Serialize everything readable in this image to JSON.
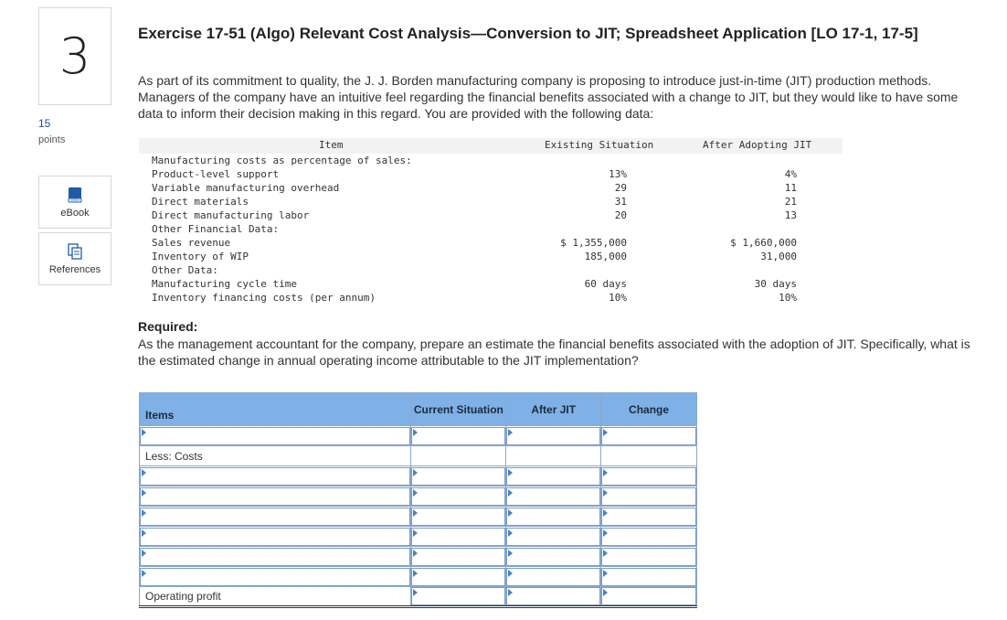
{
  "question": {
    "number": "3",
    "points_value": "15",
    "points_label": "points"
  },
  "sidebar": {
    "ebook_label": "eBook",
    "references_label": "References"
  },
  "title": "Exercise 17-51 (Algo) Relevant Cost Analysis—Conversion to JIT; Spreadsheet Application [LO 17-1, 17-5]",
  "intro": "As part of its commitment to quality, the J. J. Borden manufacturing company is proposing to introduce just-in-time (JIT) production methods. Managers of the company have an intuitive feel regarding the financial benefits associated with a change to JIT, but they would like to have some data to inform their decision making in this regard. You are provided with the following data:",
  "data_table": {
    "headers": {
      "item": "Item",
      "existing": "Existing Situation",
      "after": "After Adopting JIT"
    },
    "rows": [
      {
        "item": "Manufacturing costs as percentage of sales:",
        "existing": "",
        "after": ""
      },
      {
        "item": "Product-level support",
        "existing": "13%",
        "after": "4%"
      },
      {
        "item": "Variable manufacturing overhead",
        "existing": "29",
        "after": "11"
      },
      {
        "item": "Direct materials",
        "existing": "31",
        "after": "21"
      },
      {
        "item": "Direct manufacturing labor",
        "existing": "20",
        "after": "13"
      },
      {
        "item": "Other Financial Data:",
        "existing": "",
        "after": ""
      },
      {
        "item": "Sales revenue",
        "existing": "$ 1,355,000",
        "after": "$ 1,660,000"
      },
      {
        "item": "Inventory of WIP",
        "existing": "185,000",
        "after": "31,000"
      },
      {
        "item": "Other Data:",
        "existing": "",
        "after": ""
      },
      {
        "item": "Manufacturing cycle time",
        "existing": "60 days",
        "after": "30 days"
      },
      {
        "item": "Inventory financing costs (per annum)",
        "existing": "10%",
        "after": "10%"
      }
    ]
  },
  "required": {
    "label": "Required:",
    "text": "As the management accountant for the company, prepare an estimate the financial benefits associated with the adoption of JIT. Specifically, what is the estimated change in annual operating income attributable to the JIT implementation?"
  },
  "answer_grid": {
    "headers": {
      "items": "Items",
      "current": "Current Situation",
      "after": "After JIT",
      "change": "Change"
    },
    "less_costs_label": "Less: Costs",
    "operating_profit_label": "Operating profit"
  }
}
